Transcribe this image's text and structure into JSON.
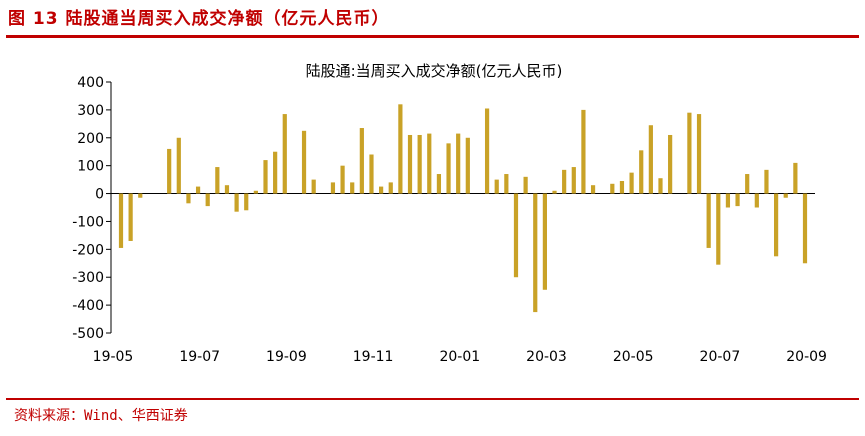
{
  "figure": {
    "title": "图 13  陆股通当周买入成交净额（亿元人民币）",
    "source": "资料来源：Wind、华西证券"
  },
  "chart_data": {
    "type": "bar",
    "title": "陆股通:当周买入成交净额(亿元人民币)",
    "color": "#c9a227",
    "ylim": [
      -500,
      400
    ],
    "yticks": [
      400,
      300,
      200,
      100,
      0,
      -100,
      -200,
      -300,
      -400,
      -500
    ],
    "xtick_labels": [
      {
        "label": "19-05",
        "index": 0
      },
      {
        "label": "19-07",
        "index": 9
      },
      {
        "label": "19-09",
        "index": 18
      },
      {
        "label": "19-11",
        "index": 27
      },
      {
        "label": "20-01",
        "index": 36
      },
      {
        "label": "20-03",
        "index": 45
      },
      {
        "label": "20-05",
        "index": 54
      },
      {
        "label": "20-07",
        "index": 63
      },
      {
        "label": "20-09",
        "index": 72
      }
    ],
    "values": [
      -195,
      -170,
      -15,
      0,
      0,
      160,
      200,
      -35,
      25,
      -45,
      95,
      30,
      -65,
      -60,
      10,
      120,
      150,
      285,
      0,
      225,
      50,
      0,
      40,
      100,
      40,
      235,
      140,
      25,
      40,
      320,
      210,
      210,
      215,
      70,
      180,
      215,
      200,
      0,
      305,
      50,
      70,
      -300,
      60,
      -425,
      -345,
      10,
      85,
      95,
      300,
      30,
      0,
      35,
      45,
      75,
      155,
      245,
      55,
      210,
      0,
      290,
      285,
      -195,
      -255,
      -50,
      -45,
      70,
      -50,
      85,
      -225,
      -15,
      110,
      -250
    ]
  }
}
